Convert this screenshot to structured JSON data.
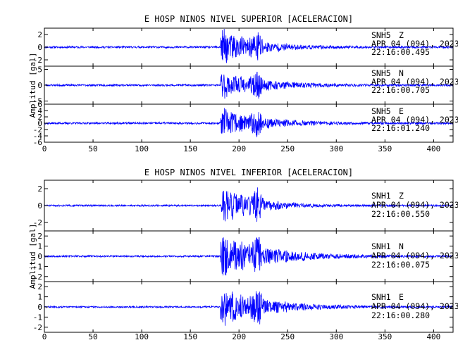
{
  "chart_data": [
    {
      "type": "line",
      "title": "E HOSP NINOS NIVEL SUPERIOR [ACELERACION]",
      "ylabel": "Amplitud [gal]",
      "xlabel": "",
      "xlim": [
        0,
        420
      ],
      "x_ticks": [
        "0",
        "50",
        "100",
        "150",
        "200",
        "250",
        "300",
        "350",
        "400"
      ],
      "grid": false,
      "series": [
        {
          "name": "SNH5 Z",
          "channel": "SNH5",
          "component": "Z",
          "date": "APR 04 (094), 2023",
          "time": "22:16:00.495",
          "ylim": [
            -3,
            3
          ],
          "y_ticks": [
            2,
            0,
            -2
          ],
          "onset": 181,
          "peak": 3.2,
          "pre_noise": 0.15,
          "decay": 34,
          "seed": 11,
          "color": "#0000ff"
        },
        {
          "name": "SNH5 N",
          "channel": "SNH5",
          "component": "N",
          "date": "APR 04 (094), 2023",
          "time": "22:16:00.705",
          "ylim": [
            -6,
            6
          ],
          "y_ticks": [
            5,
            0,
            -5
          ],
          "onset": 181,
          "peak": 4.5,
          "pre_noise": 0.3,
          "decay": 42,
          "seed": 23,
          "color": "#0000ff"
        },
        {
          "name": "SNH5 E",
          "channel": "SNH5",
          "component": "E",
          "date": "APR 04 (094), 2023",
          "time": "22:16:01.240",
          "ylim": [
            -6,
            6
          ],
          "y_ticks": [
            6,
            4,
            2,
            0,
            -2,
            -4,
            -6
          ],
          "onset": 181,
          "peak": 5,
          "pre_noise": 0.3,
          "decay": 40,
          "seed": 37,
          "color": "#0000ff"
        }
      ]
    },
    {
      "type": "line",
      "title": "E HOSP NINOS NIVEL INFERIOR [ACELERACION]",
      "ylabel": "Amplitud [gal]",
      "xlabel": "",
      "xlim": [
        0,
        420
      ],
      "x_ticks": [
        "0",
        "50",
        "100",
        "150",
        "200",
        "250",
        "300",
        "350",
        "400"
      ],
      "grid": false,
      "series": [
        {
          "name": "SNH1 Z",
          "channel": "SNH1",
          "component": "Z",
          "date": "APR 04 (094), 2023",
          "time": "22:16:00.550",
          "ylim": [
            -3,
            3
          ],
          "y_ticks": [
            2,
            0,
            -2
          ],
          "onset": 181,
          "peak": 2.6,
          "pre_noise": 0.1,
          "decay": 32,
          "seed": 51,
          "color": "#0000ff"
        },
        {
          "name": "SNH1 N",
          "channel": "SNH1",
          "component": "N",
          "date": "APR 04 (094), 2023",
          "time": "22:16:00.075",
          "ylim": [
            -2.5,
            2.5
          ],
          "y_ticks": [
            2,
            1,
            0,
            -1,
            -2
          ],
          "onset": 181,
          "peak": 2.2,
          "pre_noise": 0.08,
          "decay": 48,
          "seed": 67,
          "color": "#0000ff"
        },
        {
          "name": "SNH1 E",
          "channel": "SNH1",
          "component": "E",
          "date": "APR 04 (094), 2023",
          "time": "22:16:00.280",
          "ylim": [
            -2.5,
            2.5
          ],
          "y_ticks": [
            2,
            1,
            0,
            -1,
            -2
          ],
          "onset": 181,
          "peak": 2,
          "pre_noise": 0.08,
          "decay": 46,
          "seed": 83,
          "color": "#0000ff"
        }
      ]
    }
  ]
}
